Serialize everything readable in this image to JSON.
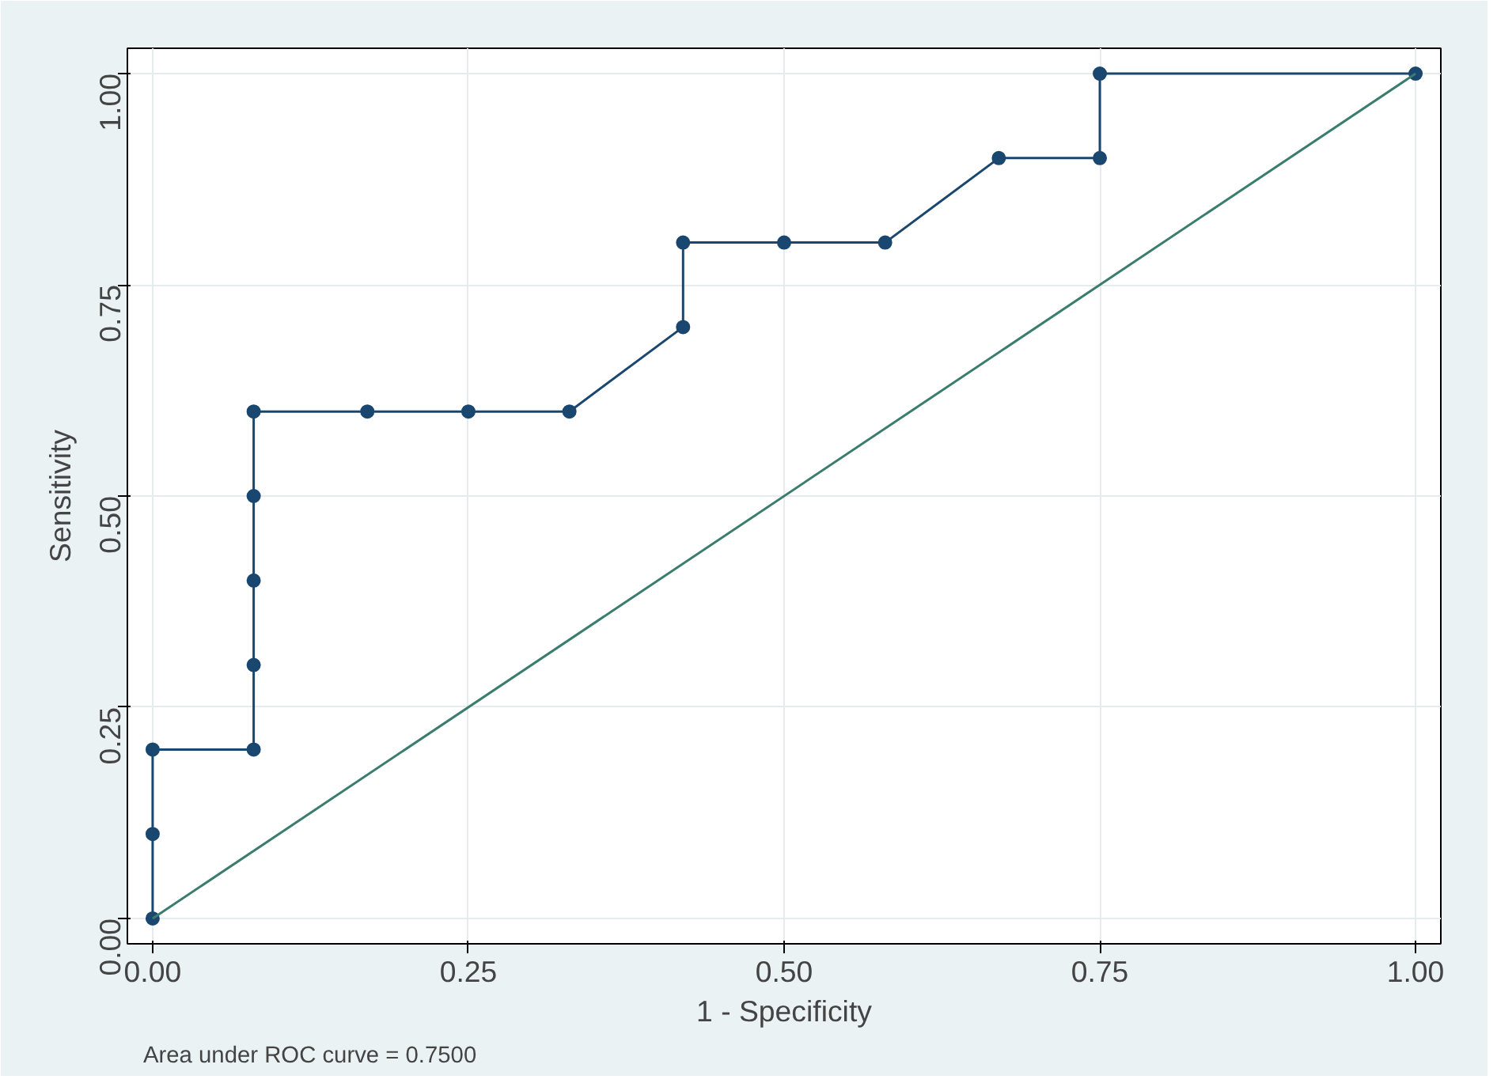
{
  "chart_data": {
    "type": "line",
    "xlabel": "1 - Specificity",
    "ylabel": "Sensitivity",
    "xlim": [
      -0.02,
      1.02
    ],
    "ylim": [
      -0.03,
      1.03
    ],
    "xticks": [
      {
        "value": 0,
        "label": "0.00"
      },
      {
        "value": 0.25,
        "label": "0.25"
      },
      {
        "value": 0.5,
        "label": "0.50"
      },
      {
        "value": 0.75,
        "label": "0.75"
      },
      {
        "value": 1,
        "label": "1.00"
      }
    ],
    "yticks": [
      {
        "value": 0,
        "label": "0.00"
      },
      {
        "value": 0.25,
        "label": "0.25"
      },
      {
        "value": 0.5,
        "label": "0.50"
      },
      {
        "value": 0.75,
        "label": "0.75"
      },
      {
        "value": 1,
        "label": "1.00"
      }
    ],
    "grid": true,
    "marker": "circle",
    "line_style": "solid",
    "series": [
      {
        "color": "#1a476f",
        "x": [
          0,
          0,
          0,
          0.08,
          0.08,
          0.08,
          0.08,
          0.08,
          0.17,
          0.25,
          0.33,
          0.42,
          0.42,
          0.5,
          0.58,
          0.67,
          0.75,
          0.75,
          1
        ],
        "values": [
          0,
          0.1,
          0.2,
          0.2,
          0.3,
          0.4,
          0.5,
          0.6,
          0.6,
          0.6,
          0.6,
          0.7,
          0.8,
          0.8,
          0.8,
          0.9,
          0.9,
          1,
          1
        ]
      },
      {
        "color": "#3a7d6e",
        "marker": "none",
        "x": [
          0,
          1
        ],
        "values": [
          0,
          1
        ]
      }
    ],
    "annotations": [
      "Area under ROC curve = 0.7500"
    ]
  }
}
